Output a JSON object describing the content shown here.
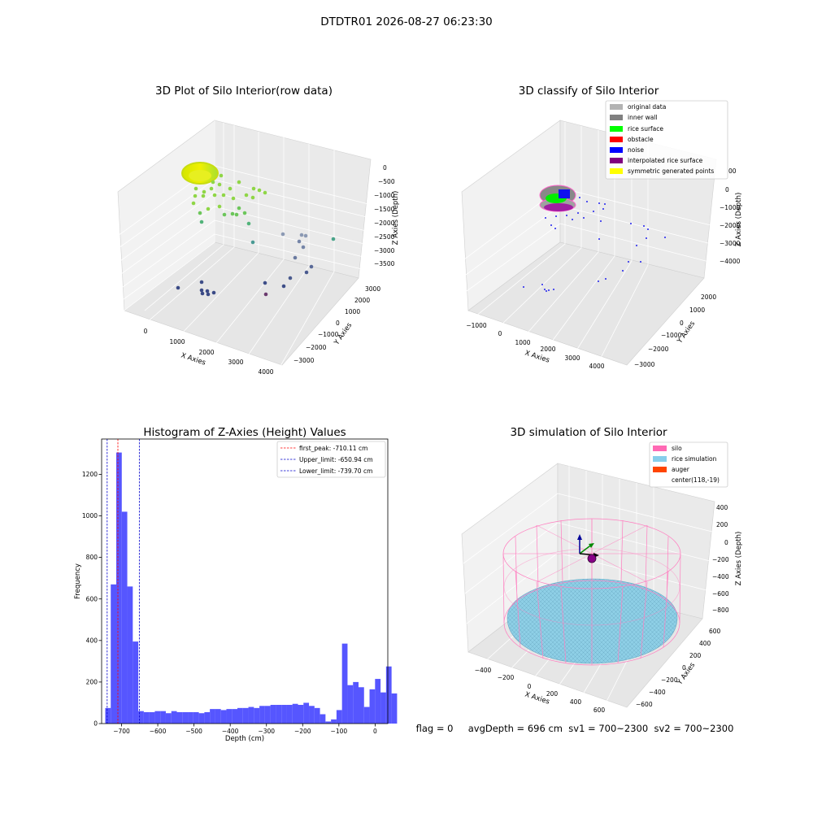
{
  "suptitle": "DTDTR01 2026-08-27 06:23:30",
  "panels": {
    "raw": {
      "title": "3D Plot of Silo Interior(row data)",
      "x_label": "X Axies",
      "y_label": "Y Axies",
      "z_label": "Z Axies (Depth)",
      "x_ticks": [
        "0",
        "1000",
        "2000",
        "3000",
        "4000"
      ],
      "y_ticks": [
        "3000",
        "2000",
        "1000",
        "0",
        "−1000",
        "−2000",
        "−3000"
      ],
      "z_ticks": [
        "0",
        "−500",
        "−1000",
        "−1500",
        "−2000",
        "−2500",
        "−3000",
        "−3500"
      ]
    },
    "classify": {
      "title": "3D classify of Silo Interior",
      "x_label": "X Axies",
      "y_label": "Y Axies",
      "z_label": "Z Axies (Depth)",
      "x_ticks": [
        "−1000",
        "0",
        "1000",
        "2000",
        "3000",
        "4000"
      ],
      "y_ticks": [
        "2000",
        "1000",
        "0",
        "−1000",
        "−2000",
        "−3000"
      ],
      "z_ticks": [
        "0",
        "−1000",
        "−2000",
        "−3000",
        "−4000"
      ],
      "z_partial_tick": "00",
      "legend": [
        {
          "label": "original data",
          "color": "#b3b3b3"
        },
        {
          "label": "inner wall",
          "color": "#808080"
        },
        {
          "label": "rice surface",
          "color": "#00ff00"
        },
        {
          "label": "obstacle",
          "color": "#ff0000"
        },
        {
          "label": "noise",
          "color": "#0000ff"
        },
        {
          "label": "interpolated rice surface",
          "color": "#800080"
        },
        {
          "label": "symmetric generated points",
          "color": "#ffff00"
        }
      ]
    },
    "simulation": {
      "title": "3D simulation of Silo Interior",
      "x_label": "X Axies",
      "y_label": "Y Axies",
      "z_label": "Z Axies (Depth)",
      "x_ticks": [
        "−400",
        "−200",
        "0",
        "200",
        "400",
        "600"
      ],
      "y_ticks": [
        "600",
        "400",
        "200",
        "0",
        "−200",
        "−400",
        "−600"
      ],
      "z_ticks": [
        "400",
        "200",
        "0",
        "−200",
        "−400",
        "−600",
        "−800"
      ],
      "legend": [
        {
          "label": "silo",
          "color": "#ff69b4"
        },
        {
          "label": "rice simulation",
          "color": "#87ceeb"
        },
        {
          "label": "auger",
          "color": "#ff4500"
        },
        {
          "label": "center(118,-19)",
          "color": ""
        }
      ],
      "footer": "flag = 0     avgDepth = 696 cm  sv1 = 700~2300  sv2 = 700~2300"
    }
  },
  "chart_data": [
    {
      "type": "scatter",
      "title": "3D Plot of Silo Interior(row data)",
      "xlabel": "X Axies",
      "ylabel": "Y Axies",
      "zlabel": "Z Axies (Depth)",
      "xlim": [
        -500,
        4000
      ],
      "ylim": [
        -3000,
        3000
      ],
      "zlim": [
        -4000,
        200
      ]
    },
    {
      "type": "scatter",
      "title": "3D classify of Silo Interior",
      "xlabel": "X Axies",
      "ylabel": "Y Axies",
      "zlabel": "Z Axies (Depth)",
      "series": [
        {
          "name": "original data"
        },
        {
          "name": "inner wall"
        },
        {
          "name": "rice surface"
        },
        {
          "name": "obstacle"
        },
        {
          "name": "noise"
        },
        {
          "name": "interpolated rice surface"
        },
        {
          "name": "symmetric generated points"
        }
      ]
    },
    {
      "type": "bar",
      "title": "Histogram of Z-Axies (Height) Values",
      "xlabel": "Depth (cm)",
      "ylabel": "Frequency",
      "xlim": [
        -755,
        35
      ],
      "ylim": [
        0,
        1370
      ],
      "x_ticks": [
        -700,
        -600,
        -500,
        -400,
        -300,
        -200,
        -100,
        0
      ],
      "x_tick_labels": [
        "−700",
        "−600",
        "−500",
        "−400",
        "−300",
        "−200",
        "−100",
        "0"
      ],
      "y_ticks": [
        0,
        200,
        400,
        600,
        800,
        1000,
        1200
      ],
      "bin_start": -745,
      "bin_width": 15.2,
      "values": [
        75,
        670,
        1305,
        1020,
        660,
        395,
        60,
        55,
        55,
        60,
        60,
        50,
        60,
        55,
        55,
        55,
        55,
        50,
        55,
        70,
        70,
        65,
        70,
        70,
        75,
        75,
        80,
        75,
        85,
        85,
        90,
        90,
        90,
        90,
        95,
        90,
        100,
        85,
        75,
        45,
        10,
        20,
        65,
        385,
        185,
        200,
        175,
        80,
        165,
        215,
        150,
        275,
        145
      ],
      "bar_color": "#4444ff",
      "vlines": [
        {
          "name": "first_peak: -710.11 cm",
          "x": -710.11,
          "color": "#ff0000"
        },
        {
          "name": "Upper_limit: -650.94 cm",
          "x": -650.94,
          "color": "#0000cc"
        },
        {
          "name": "Lower_limit: -739.70 cm",
          "x": -739.7,
          "color": "#0000cc"
        }
      ],
      "legend_position": "top-right"
    },
    {
      "type": "scatter",
      "title": "3D simulation of Silo Interior",
      "xlabel": "X Axies",
      "ylabel": "Y Axies",
      "zlabel": "Z Axies (Depth)",
      "series": [
        {
          "name": "silo"
        },
        {
          "name": "rice simulation"
        },
        {
          "name": "auger"
        },
        {
          "name": "center(118,-19)"
        }
      ]
    }
  ]
}
